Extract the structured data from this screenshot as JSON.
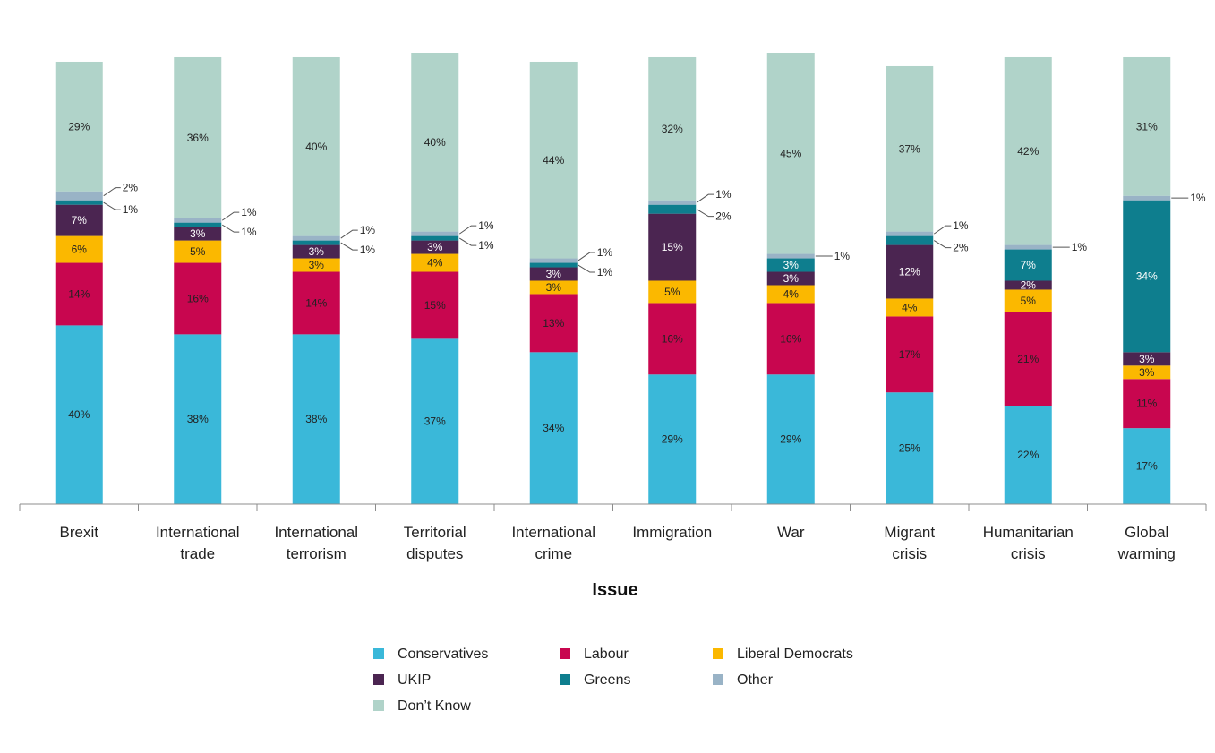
{
  "chart_data": {
    "type": "bar",
    "stacked": true,
    "title": "",
    "xlabel": "Issue",
    "ylabel": "",
    "ylim": [
      0,
      100
    ],
    "grid": false,
    "legend_position": "bottom",
    "categories": [
      [
        "Brexit"
      ],
      [
        "International",
        "trade"
      ],
      [
        "International",
        "terrorism"
      ],
      [
        "Territorial",
        "disputes"
      ],
      [
        "International",
        "crime"
      ],
      [
        "Immigration"
      ],
      [
        "War"
      ],
      [
        "Migrant",
        "crisis"
      ],
      [
        "Humanitarian",
        "crisis"
      ],
      [
        "Global",
        "warming"
      ]
    ],
    "series": [
      {
        "name": "Conservatives",
        "color": "#3AB8D9",
        "values": [
          40,
          38,
          38,
          37,
          34,
          29,
          29,
          25,
          22,
          17
        ]
      },
      {
        "name": "Labour",
        "color": "#C8064F",
        "values": [
          14,
          16,
          14,
          15,
          13,
          16,
          16,
          17,
          21,
          11
        ]
      },
      {
        "name": "Liberal Democrats",
        "color": "#FBB800",
        "values": [
          6,
          5,
          3,
          4,
          3,
          5,
          4,
          4,
          5,
          3
        ]
      },
      {
        "name": "UKIP",
        "color": "#4B2551",
        "values": [
          7,
          3,
          3,
          3,
          3,
          15,
          3,
          12,
          2,
          3
        ]
      },
      {
        "name": "Greens",
        "color": "#0E7E8E",
        "values": [
          1,
          1,
          1,
          1,
          1,
          2,
          3,
          2,
          7,
          34
        ]
      },
      {
        "name": "Other",
        "color": "#99B3C6",
        "values": [
          2,
          1,
          1,
          1,
          1,
          1,
          1,
          1,
          1,
          1
        ]
      },
      {
        "name": "Don’t Know",
        "color": "#B0D3C9",
        "values": [
          29,
          36,
          40,
          40,
          44,
          32,
          45,
          37,
          42,
          31
        ]
      }
    ],
    "labels": [
      [
        "40%",
        "14%",
        "6%",
        "7%",
        "1%",
        "2%",
        "29%"
      ],
      [
        "38%",
        "16%",
        "5%",
        "3%",
        "1%",
        "1%",
        "36%"
      ],
      [
        "38%",
        "14%",
        "3%",
        "3%",
        "1%",
        "1%",
        "40%"
      ],
      [
        "37%",
        "15%",
        "4%",
        "3%",
        "1%",
        "1%",
        "40%"
      ],
      [
        "34%",
        "13%",
        "3%",
        "3%",
        "1%",
        "1%",
        "44%"
      ],
      [
        "29%",
        "16%",
        "5%",
        "15%",
        "2%",
        "1%",
        "32%"
      ],
      [
        "29%",
        "16%",
        "4%",
        "3%",
        "3%",
        "1%",
        "45%"
      ],
      [
        "25%",
        "17%",
        "4%",
        "12%",
        "2%",
        "1%",
        "37%"
      ],
      [
        "22%",
        "21%",
        "5%",
        "2%",
        "7%",
        "1%",
        "42%"
      ],
      [
        "17%",
        "11%",
        "3%",
        "3%",
        "34%",
        "1%",
        "31%"
      ]
    ]
  }
}
